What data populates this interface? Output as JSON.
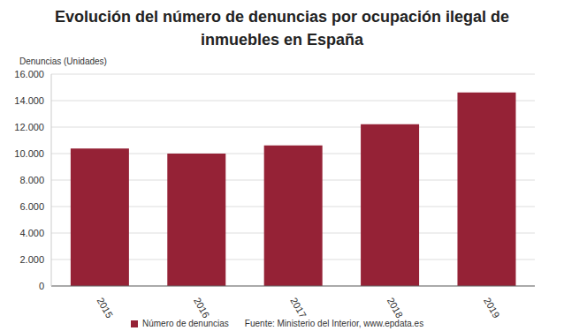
{
  "chart_data": {
    "type": "bar",
    "title": "Evolución del número de denuncias por ocupación ilegal de inmuebles en España",
    "y_label": "Denuncias (Unidades)",
    "source": "Fuente: Ministerio del Interior, www.epdata.es",
    "categories": [
      "2015",
      "2016",
      "2017",
      "2018",
      "2019"
    ],
    "series": [
      {
        "name": "Número de denuncias",
        "color": "#952236",
        "values": [
          10376,
          10002,
          10619,
          12214,
          14621
        ]
      }
    ],
    "ylim": [
      0,
      16000
    ],
    "yticks": [
      0,
      {
        "value": 2000,
        "label": "2.000"
      },
      {
        "value": 4000,
        "label": "4.000"
      },
      {
        "value": 6000,
        "label": "6.000"
      },
      {
        "value": 8000,
        "label": "8.000"
      },
      {
        "value": 10000,
        "label": "10.000"
      },
      {
        "value": 12000,
        "label": "12.000"
      },
      {
        "value": 14000,
        "label": "14.000"
      },
      {
        "value": 16000,
        "label": "16.000"
      }
    ],
    "grid": true,
    "legend": "bottom"
  }
}
